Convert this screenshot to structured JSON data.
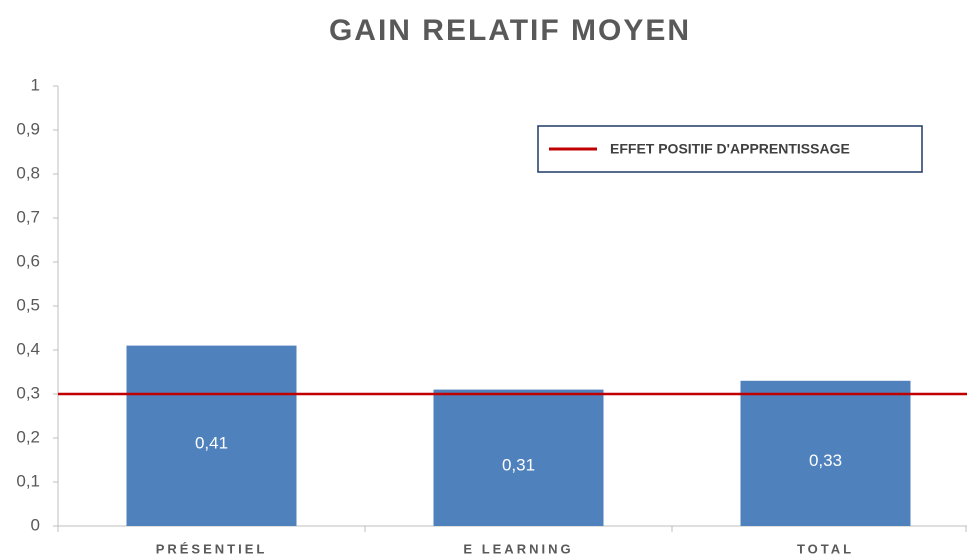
{
  "chart_data": {
    "type": "bar",
    "title": "GAIN RELATIF MOYEN",
    "categories": [
      "PRÉSENTIEL",
      "E LEARNING",
      "TOTAL"
    ],
    "values": [
      0.41,
      0.31,
      0.33
    ],
    "value_labels": [
      "0,41",
      "0,31",
      "0,33"
    ],
    "color": "#4f81bd",
    "ylim": [
      0,
      1
    ],
    "yticks": [
      0,
      {
        "value": 0.1,
        "label": "0,1"
      },
      {
        "value": 0.2,
        "label": "0,2"
      },
      {
        "value": 0.3,
        "label": "0,3"
      },
      {
        "value": 0.4,
        "label": "0,4"
      },
      {
        "value": 0.5,
        "label": "0,5"
      },
      {
        "value": 0.6,
        "label": "0,6"
      },
      {
        "value": 0.7,
        "label": "0,7"
      },
      {
        "value": 0.8,
        "label": "0,8"
      },
      {
        "value": 0.9,
        "label": "0,9"
      },
      1
    ],
    "grid": false,
    "reference_line": {
      "name": "EFFET POSITIF D'APPRENTISSAGE",
      "value": 0.3,
      "color": "#c00000"
    },
    "legend": "upper right"
  }
}
